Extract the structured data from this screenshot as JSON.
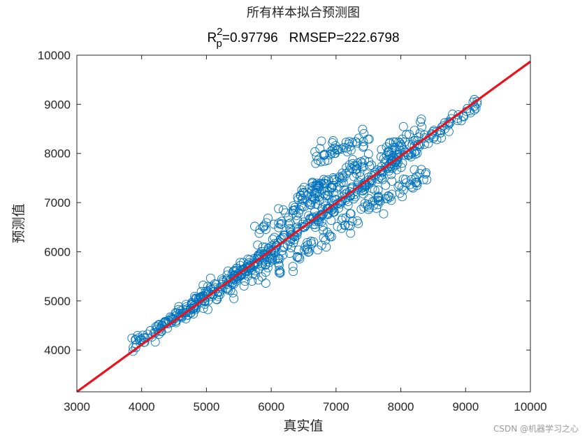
{
  "chart_data": {
    "type": "scatter",
    "title": "所有样本拟合预测图",
    "subtitle": {
      "r_base": "R",
      "r_sup": "2",
      "r_sub": "p",
      "r_value": "=0.97796",
      "rmsep": "RMSEP=222.6798"
    },
    "xlabel": "真实值",
    "ylabel": "预测值",
    "xlim": [
      3000,
      10000
    ],
    "ylim": [
      3150,
      10000
    ],
    "xticks": [
      "3000",
      "4000",
      "5000",
      "6000",
      "7000",
      "8000",
      "9000",
      "10000"
    ],
    "yticks": [
      "4000",
      "5000",
      "6000",
      "7000",
      "8000",
      "9000",
      "10000"
    ],
    "grid": false,
    "series": [
      {
        "marker": "open-circle",
        "color": "#0072BD",
        "clusters": [
          {
            "from": [
              3880,
              4070
            ],
            "to": [
              9200,
              9000
            ],
            "count": 420,
            "spread": 75
          },
          {
            "from": [
              4600,
              4750
            ],
            "to": [
              6400,
              6300
            ],
            "count": 90,
            "spread": 140
          },
          {
            "from": [
              5800,
              6300
            ],
            "to": [
              7400,
              7800
            ],
            "count": 70,
            "spread": 130
          },
          {
            "from": [
              6400,
              6800
            ],
            "to": [
              7600,
              8000
            ],
            "count": 55,
            "spread": 110
          },
          {
            "from": [
              6700,
              7900
            ],
            "to": [
              7600,
              8400
            ],
            "count": 45,
            "spread": 90
          },
          {
            "from": [
              6400,
              7100
            ],
            "to": [
              6800,
              7450
            ],
            "count": 22,
            "spread": 70
          },
          {
            "from": [
              6300,
              5900
            ],
            "to": [
              6900,
              6300
            ],
            "count": 30,
            "spread": 120
          },
          {
            "from": [
              7000,
              6500
            ],
            "to": [
              7700,
              7050
            ],
            "count": 28,
            "spread": 110
          },
          {
            "from": [
              7600,
              7000
            ],
            "to": [
              8400,
              7600
            ],
            "count": 45,
            "spread": 120
          },
          {
            "from": [
              7700,
              7900
            ],
            "to": [
              8400,
              8500
            ],
            "count": 50,
            "spread": 140
          },
          {
            "from": [
              5400,
              5300
            ],
            "to": [
              6200,
              5800
            ],
            "count": 35,
            "spread": 140
          }
        ]
      },
      {
        "name": "",
        "type": "line",
        "color": "#E8141B",
        "x": [
          3000,
          10000
        ],
        "y": [
          3150,
          9870
        ]
      }
    ]
  },
  "watermark": "CSDN @机器学习之心"
}
